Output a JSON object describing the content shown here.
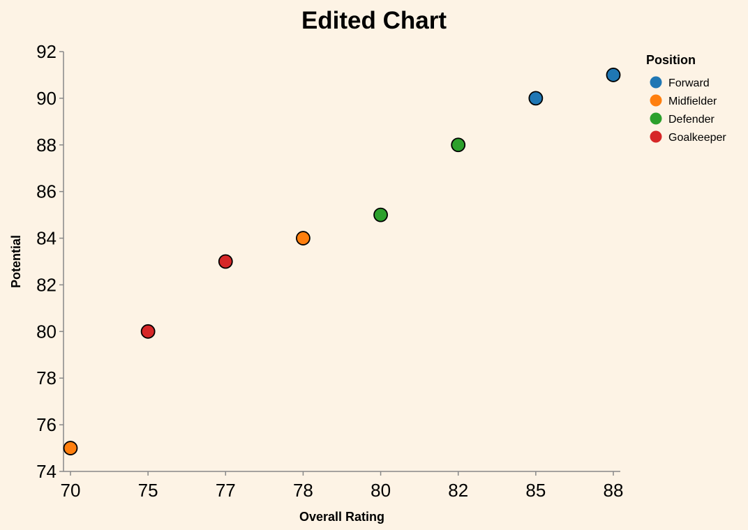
{
  "chart_data": {
    "type": "scatter",
    "title": "Edited Chart",
    "xlabel": "Overall Rating",
    "ylabel": "Potential",
    "x_axis_kind": "ordinal",
    "x_categories": [
      "70",
      "75",
      "77",
      "78",
      "80",
      "82",
      "85",
      "88"
    ],
    "ylim": [
      74,
      92
    ],
    "y_ticks": [
      74,
      76,
      78,
      80,
      82,
      84,
      86,
      88,
      90,
      92
    ],
    "grid": false,
    "legend": {
      "title": "Position",
      "placement": "top-right",
      "entries": [
        {
          "name": "Forward",
          "color": "#1f77b4"
        },
        {
          "name": "Midfielder",
          "color": "#ff7f0e"
        },
        {
          "name": "Defender",
          "color": "#2ca02c"
        },
        {
          "name": "Goalkeeper",
          "color": "#d62728"
        }
      ]
    },
    "points": [
      {
        "x": "70",
        "y": 75,
        "position": "Midfielder"
      },
      {
        "x": "75",
        "y": 80,
        "position": "Goalkeeper"
      },
      {
        "x": "77",
        "y": 83,
        "position": "Goalkeeper"
      },
      {
        "x": "78",
        "y": 84,
        "position": "Midfielder"
      },
      {
        "x": "80",
        "y": 85,
        "position": "Defender"
      },
      {
        "x": "82",
        "y": 88,
        "position": "Defender"
      },
      {
        "x": "85",
        "y": 90,
        "position": "Forward"
      },
      {
        "x": "88",
        "y": 91,
        "position": "Forward"
      }
    ]
  }
}
